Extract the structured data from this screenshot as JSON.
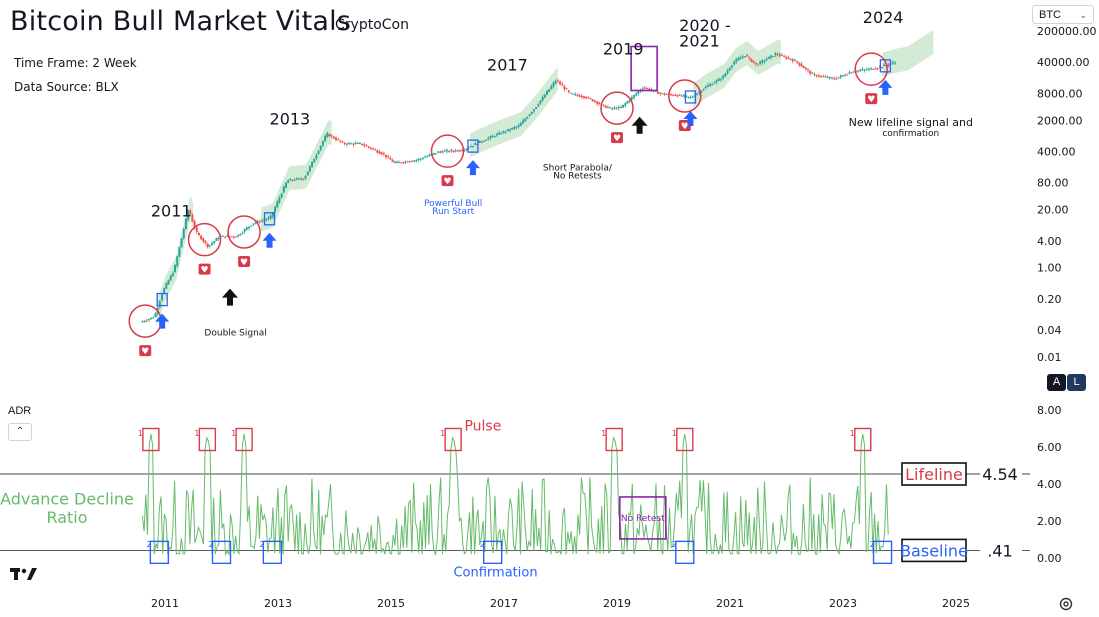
{
  "title": "Bitcoin Bull Market Vitals",
  "author": "CryptoCon",
  "timeframe": "Time Frame: 2 Week",
  "datasource": "Data Source: BLX",
  "symbol": "BTC",
  "panel_buttons": [
    "A",
    "L"
  ],
  "indicator_name": "ADR",
  "colors": {
    "up": "#26a69a",
    "down": "#ef5350",
    "adr": "#66bb6a",
    "band": "#c8e6c9",
    "red": "#d83a4a",
    "blue": "#2962ff",
    "purple": "#8e24aa",
    "text": "#131722"
  },
  "chart_data": [
    {
      "type": "candlestick",
      "scale": "log",
      "yticks": [
        "200000.00",
        "40000.00",
        "8000.00",
        "2000.00",
        "400.00",
        "80.00",
        "20.00",
        "4.00",
        "1.00",
        "0.20",
        "0.04",
        "0.01"
      ],
      "ytick_values": [
        200000,
        40000,
        8000,
        2000,
        400,
        80,
        20,
        4,
        1,
        0.2,
        0.04,
        0.01
      ],
      "price_path": [
        [
          2010.6,
          0.06
        ],
        [
          2010.85,
          0.08
        ],
        [
          2011.0,
          0.3
        ],
        [
          2011.2,
          0.9
        ],
        [
          2011.45,
          20
        ],
        [
          2011.6,
          6
        ],
        [
          2011.8,
          3
        ],
        [
          2012.0,
          5
        ],
        [
          2012.3,
          5
        ],
        [
          2012.6,
          10
        ],
        [
          2012.9,
          13
        ],
        [
          2013.2,
          90
        ],
        [
          2013.5,
          100
        ],
        [
          2013.9,
          1000
        ],
        [
          2014.2,
          600
        ],
        [
          2014.5,
          600
        ],
        [
          2014.9,
          350
        ],
        [
          2015.1,
          220
        ],
        [
          2015.5,
          260
        ],
        [
          2015.9,
          400
        ],
        [
          2016.3,
          430
        ],
        [
          2016.6,
          650
        ],
        [
          2016.9,
          950
        ],
        [
          2017.3,
          1500
        ],
        [
          2017.6,
          4000
        ],
        [
          2017.96,
          16000
        ],
        [
          2018.2,
          8000
        ],
        [
          2018.5,
          6500
        ],
        [
          2018.9,
          3700
        ],
        [
          2019.1,
          3800
        ],
        [
          2019.5,
          11000
        ],
        [
          2019.8,
          8000
        ],
        [
          2020.2,
          7000
        ],
        [
          2020.35,
          6500
        ],
        [
          2020.6,
          11000
        ],
        [
          2020.9,
          18000
        ],
        [
          2021.1,
          40000
        ],
        [
          2021.3,
          58000
        ],
        [
          2021.5,
          35000
        ],
        [
          2021.85,
          62000
        ],
        [
          2022.2,
          42000
        ],
        [
          2022.5,
          21000
        ],
        [
          2022.9,
          17000
        ],
        [
          2023.2,
          25000
        ],
        [
          2023.6,
          29000
        ],
        [
          2023.9,
          38000
        ],
        [
          2024.15,
          44000
        ]
      ],
      "events": [
        {
          "year": 2010.65,
          "label": "2011",
          "buy": 2010.65,
          "confirm": 2010.95
        },
        {
          "year": 2011.7,
          "buy": 2011.7
        },
        {
          "year": 2012.4,
          "label": "2013",
          "buy": 2012.4,
          "confirm": 2012.85
        },
        {
          "year": 2016.0,
          "label": "2017",
          "buy": 2016.0,
          "confirm": 2016.45
        },
        {
          "year": 2019.0,
          "label": "2019",
          "buy": 2019.0
        },
        {
          "year": 2020.2,
          "label": "2020 - 2021",
          "buy": 2020.2,
          "confirm": 2020.3
        },
        {
          "year": 2023.5,
          "label": "2024",
          "buy": 2023.5,
          "confirm": 2023.75
        }
      ],
      "annotations": [
        {
          "text": "2011",
          "x": 2010.75,
          "y": 14
        },
        {
          "text": "2013",
          "x": 2012.85,
          "y": 1600
        },
        {
          "text": "2017",
          "x": 2016.7,
          "y": 26000
        },
        {
          "text": "2019",
          "x": 2018.75,
          "y": 60000
        },
        {
          "text": "2020 -",
          "x": 2020.1,
          "y": 200000
        },
        {
          "text": "2021",
          "x": 2020.1,
          "y": 90000
        },
        {
          "text": "2024",
          "x": 2023.35,
          "y": 300000
        },
        {
          "text": "Double Signal",
          "x": 2012.25,
          "y": 0.03
        },
        {
          "text": "Powerful Bull",
          "x": 2016.1,
          "y": 24
        },
        {
          "text": "Run Start",
          "x": 2016.1,
          "y": 16
        },
        {
          "text": "Short Parabola/",
          "x": 2018.3,
          "y": 150
        },
        {
          "text": "No Retests",
          "x": 2018.3,
          "y": 100
        },
        {
          "text": "New lifeline signal and",
          "x": 2024.2,
          "y": 1500
        },
        {
          "text": "confirmation",
          "x": 2024.2,
          "y": 900
        }
      ],
      "legend": "none"
    },
    {
      "type": "line",
      "name": "ADR",
      "ylabel": "Advance Decline Ratio",
      "yticks": [
        "8.00",
        "6.00",
        "4.00",
        "2.00",
        "0.00"
      ],
      "ytick_values": [
        8,
        6,
        4,
        2,
        0
      ],
      "ylim": [
        -0.6,
        8.6
      ],
      "lifeline": {
        "label": "Lifeline",
        "value": 4.54,
        "value_text": "4.54"
      },
      "baseline": {
        "label": "Baseline",
        "value": 0.41,
        "value_text": ".41"
      },
      "pulses": [
        2010.75,
        2011.75,
        2012.4,
        2016.1,
        2018.95,
        2020.2,
        2023.35
      ],
      "confirmations": [
        2010.9,
        2012.0,
        2012.9,
        2016.8,
        2020.2,
        2023.7
      ],
      "annotations": {
        "pulse": "Pulse",
        "confirmation": "Confirmation",
        "no_retest": "No Retest",
        "mark1": "1",
        "mark2": "2"
      }
    }
  ],
  "xaxis": {
    "ticks": [
      "2011",
      "2013",
      "2015",
      "2017",
      "2019",
      "2021",
      "2023",
      "2025"
    ],
    "tick_values": [
      2011,
      2013,
      2015,
      2017,
      2019,
      2021,
      2023,
      2025
    ]
  }
}
